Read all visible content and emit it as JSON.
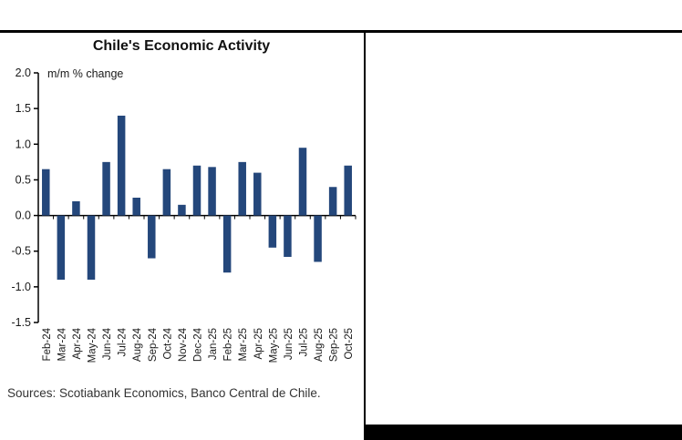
{
  "panel": {
    "title": "Chile's Economic Activity",
    "source": "Sources: Scotiabank Economics, Banco Central de Chile."
  },
  "chart_data": {
    "type": "bar",
    "title": "Chile's Economic Activity",
    "unit_annotation": "m/m % change",
    "categories": [
      "Feb-24",
      "Mar-24",
      "Apr-24",
      "May-24",
      "Jun-24",
      "Jul-24",
      "Aug-24",
      "Sep-24",
      "Oct-24",
      "Nov-24",
      "Dec-24",
      "Jan-25",
      "Feb-25",
      "Mar-25",
      "Apr-25",
      "May-25",
      "Jun-25",
      "Jul-25",
      "Aug-25",
      "Sep-25",
      "Oct-25"
    ],
    "values": [
      0.65,
      -0.9,
      0.2,
      -0.9,
      0.75,
      1.4,
      0.25,
      -0.6,
      0.65,
      0.15,
      0.7,
      0.68,
      -0.8,
      0.75,
      0.6,
      -0.45,
      -0.58,
      0.95,
      -0.65,
      0.4,
      0.7
    ],
    "ylim": [
      -1.5,
      2.0
    ],
    "ytick_step": 0.5,
    "bar_color": "#24477B",
    "axis_color": "#000000",
    "grid": false,
    "legend": false,
    "source": "Sources: Scotiabank Economics, Banco Central de Chile."
  }
}
